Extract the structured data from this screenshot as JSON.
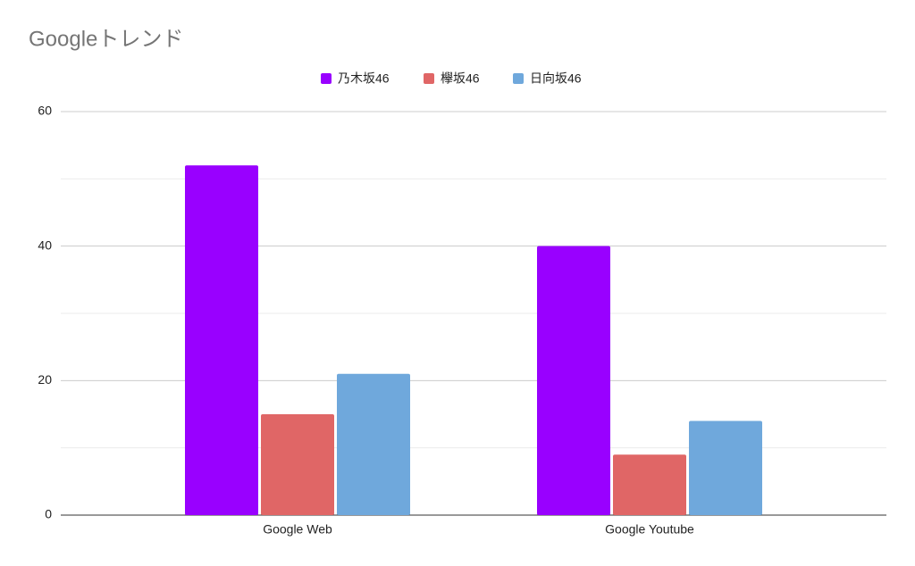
{
  "chart_data": {
    "type": "bar",
    "title": "Googleトレンド",
    "categories": [
      "Google Web",
      "Google Youtube"
    ],
    "series": [
      {
        "name": "乃木坂46",
        "color": "#9900ff",
        "values": [
          52,
          40
        ]
      },
      {
        "name": "欅坂46",
        "color": "#e06666",
        "values": [
          15,
          9
        ]
      },
      {
        "name": "日向坂46",
        "color": "#6fa8dc",
        "values": [
          21,
          14
        ]
      }
    ],
    "ylim": [
      0,
      60
    ],
    "yticks": [
      0,
      20,
      40,
      60
    ],
    "minor_yticks": [
      10,
      30,
      50
    ],
    "grid": true,
    "legend": "top"
  }
}
